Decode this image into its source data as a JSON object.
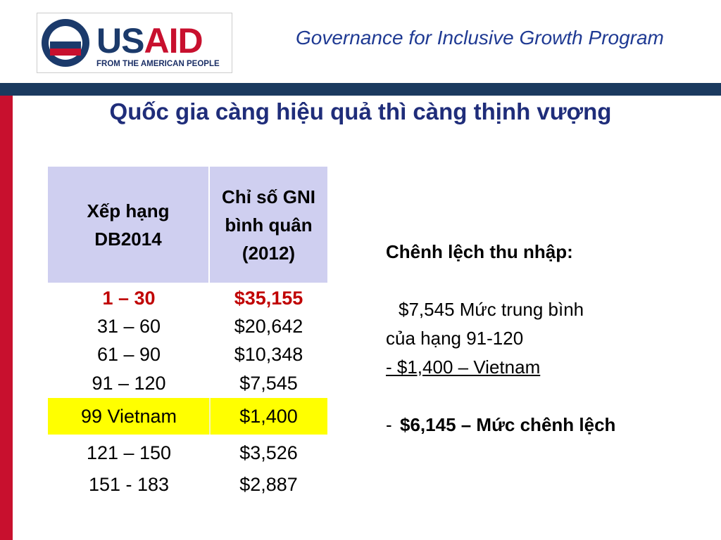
{
  "header": {
    "logo": {
      "wordmark": [
        "US",
        "AID"
      ],
      "tagline": "FROM THE AMERICAN PEOPLE"
    },
    "program": "Governance for Inclusive Growth Program"
  },
  "title": "Quốc gia càng hiệu quả thì càng thịnh vượng",
  "table": {
    "columns": [
      "Xếp hạng DB2014",
      "Chỉ số GNI bình quân (2012)"
    ],
    "rows": [
      [
        "1 – 30",
        "$35,155"
      ],
      [
        "31 – 60",
        "$20,642"
      ],
      [
        "61 – 90",
        "$10,348"
      ],
      [
        "91 – 120",
        "$7,545"
      ],
      [
        "99 Vietnam",
        "$1,400"
      ],
      [
        "121  – 150",
        "$3,526"
      ],
      [
        "151 - 183",
        "$2,887"
      ]
    ]
  },
  "note": {
    "heading": "Chênh lệch thu nhập:",
    "lines": [
      "$7,545 Mức trung bình",
      "của hạng 91-120",
      "- $1,400 – Vietnam"
    ],
    "difference": {
      "dash": "-",
      "text": "$6,145 – Mức chênh lệch"
    }
  }
}
